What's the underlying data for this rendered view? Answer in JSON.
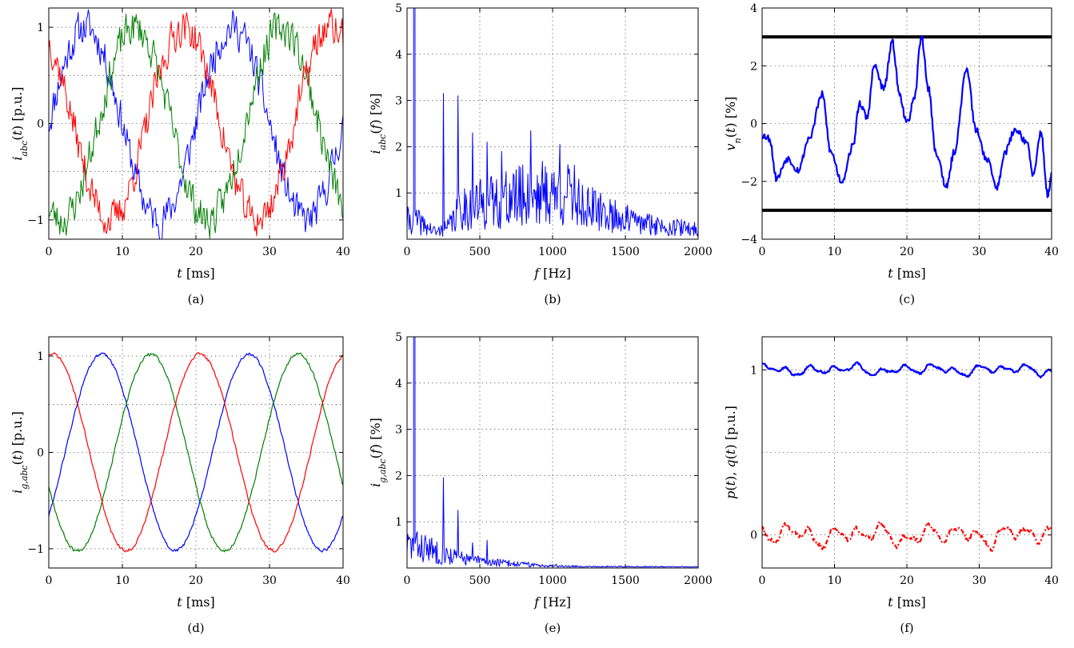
{
  "chart_data": [
    {
      "id": "a",
      "caption": "(a)",
      "type": "line",
      "xlabel": "t [ms]",
      "ylabel": "i_abc(t) [p.u.]",
      "xlim": [
        0,
        40
      ],
      "ylim": [
        -1.2,
        1.2
      ],
      "xticks": [
        0,
        10,
        20,
        30,
        40
      ],
      "yticks": [
        -1,
        0,
        1
      ],
      "ytick_labels": [
        "−1",
        "0",
        "1"
      ],
      "grid": true,
      "series": [
        {
          "color": "#0000ff",
          "kind": "sine",
          "amp": 1.0,
          "freq_hz": 50,
          "phase_deg": -90,
          "noise": 0.17,
          "seed": 11,
          "width": 1
        },
        {
          "color": "#007f00",
          "kind": "sine",
          "amp": 1.0,
          "freq_hz": 50,
          "phase_deg": 150,
          "noise": 0.17,
          "seed": 23,
          "width": 1
        },
        {
          "color": "#ff0000",
          "kind": "sine",
          "amp": 1.0,
          "freq_hz": 50,
          "phase_deg": 30,
          "noise": 0.17,
          "seed": 37,
          "width": 1
        }
      ]
    },
    {
      "id": "b",
      "caption": "(b)",
      "type": "line",
      "xlabel": "f [Hz]",
      "ylabel": "i_abc(f) [%]",
      "xlim": [
        0,
        2000
      ],
      "ylim": [
        0,
        5
      ],
      "xticks": [
        0,
        500,
        1000,
        1500,
        2000
      ],
      "yticks": [
        1,
        2,
        3,
        4,
        5
      ],
      "grid": true,
      "series": [
        {
          "color": "#0000ff",
          "kind": "spectrum",
          "seed": 41,
          "width": 1,
          "peaks": [
            [
              50,
              100
            ],
            [
              250,
              3.15
            ],
            [
              350,
              3.1
            ],
            [
              450,
              2.3
            ],
            [
              550,
              2.1
            ],
            [
              650,
              1.9
            ],
            [
              850,
              2.35
            ],
            [
              1050,
              2.05
            ],
            [
              1150,
              1.6
            ]
          ],
          "envelope": [
            [
              0,
              0.4
            ],
            [
              60,
              0.4
            ],
            [
              200,
              0.15
            ],
            [
              280,
              0.25
            ],
            [
              380,
              0.7
            ],
            [
              600,
              0.8
            ],
            [
              900,
              1.0
            ],
            [
              1100,
              0.95
            ],
            [
              1300,
              0.6
            ],
            [
              1600,
              0.35
            ],
            [
              2000,
              0.2
            ]
          ]
        }
      ]
    },
    {
      "id": "c",
      "caption": "(c)",
      "type": "line",
      "xlabel": "t [ms]",
      "ylabel": "v_n(t) [%]",
      "xlim": [
        0,
        40
      ],
      "ylim": [
        -4,
        4
      ],
      "xticks": [
        0,
        10,
        20,
        30,
        40
      ],
      "yticks": [
        -4,
        -2,
        0,
        2,
        4
      ],
      "ytick_labels": [
        "−4",
        "−2",
        "0",
        "2",
        "4"
      ],
      "grid": true,
      "hlines": [
        3,
        -3
      ],
      "series": [
        {
          "color": "#0000ff",
          "kind": "keypoints",
          "seed": 53,
          "width": 2.2,
          "noise": 0.25,
          "points": [
            [
              0,
              -0.4
            ],
            [
              1,
              -0.5
            ],
            [
              2,
              -1.9
            ],
            [
              3.5,
              -1.2
            ],
            [
              5,
              -1.6
            ],
            [
              6.5,
              -0.5
            ],
            [
              8.3,
              1.0
            ],
            [
              9.5,
              -1.0
            ],
            [
              11,
              -2.0
            ],
            [
              12.5,
              -0.8
            ],
            [
              13.5,
              0.7
            ],
            [
              14.5,
              0.2
            ],
            [
              15.5,
              2.0
            ],
            [
              16.8,
              1.2
            ],
            [
              18,
              2.8
            ],
            [
              19,
              1.0
            ],
            [
              20,
              0.0
            ],
            [
              21,
              0.8
            ],
            [
              22,
              3.0
            ],
            [
              23,
              1.2
            ],
            [
              24,
              -1.0
            ],
            [
              25.5,
              -2.2
            ],
            [
              26.5,
              -1.0
            ],
            [
              28.3,
              1.9
            ],
            [
              29.5,
              -0.2
            ],
            [
              31,
              -1.2
            ],
            [
              32.5,
              -2.2
            ],
            [
              33.5,
              -1.0
            ],
            [
              35,
              -0.2
            ],
            [
              36.5,
              -0.6
            ],
            [
              37.5,
              -1.8
            ],
            [
              38.5,
              -0.3
            ],
            [
              39.5,
              -2.5
            ],
            [
              40,
              -1.8
            ]
          ]
        }
      ]
    },
    {
      "id": "d",
      "caption": "(d)",
      "type": "line",
      "xlabel": "t [ms]",
      "ylabel": "i_g,abc(t) [p.u.]",
      "xlim": [
        0,
        40
      ],
      "ylim": [
        -1.2,
        1.2
      ],
      "xticks": [
        0,
        10,
        20,
        30,
        40
      ],
      "yticks": [
        -1,
        0,
        1
      ],
      "ytick_labels": [
        "−1",
        "0",
        "1"
      ],
      "grid": true,
      "series": [
        {
          "color": "#0000ff",
          "kind": "sine",
          "amp": 1.02,
          "freq_hz": 50,
          "phase_deg": -130,
          "noise": 0.015,
          "seed": 61,
          "width": 1.2
        },
        {
          "color": "#007f00",
          "kind": "sine",
          "amp": 1.02,
          "freq_hz": 50,
          "phase_deg": 110,
          "noise": 0.015,
          "seed": 67,
          "width": 1.2
        },
        {
          "color": "#ff0000",
          "kind": "sine",
          "amp": 1.02,
          "freq_hz": 50,
          "phase_deg": -10,
          "noise": 0.015,
          "seed": 71,
          "width": 1.2
        }
      ]
    },
    {
      "id": "e",
      "caption": "(e)",
      "type": "line",
      "xlabel": "f [Hz]",
      "ylabel": "i_g,abc(f) [%]",
      "xlim": [
        0,
        2000
      ],
      "ylim": [
        0,
        5
      ],
      "xticks": [
        0,
        500,
        1000,
        1500,
        2000
      ],
      "yticks": [
        1,
        2,
        3,
        4,
        5
      ],
      "grid": true,
      "series": [
        {
          "color": "#0000ff",
          "kind": "spectrum",
          "seed": 83,
          "width": 1,
          "peaks": [
            [
              50,
              100
            ],
            [
              250,
              1.95
            ],
            [
              350,
              1.25
            ],
            [
              450,
              0.55
            ],
            [
              550,
              0.6
            ]
          ],
          "envelope": [
            [
              0,
              0.5
            ],
            [
              100,
              0.45
            ],
            [
              250,
              0.3
            ],
            [
              400,
              0.2
            ],
            [
              600,
              0.12
            ],
            [
              900,
              0.06
            ],
            [
              1200,
              0.03
            ],
            [
              2000,
              0.02
            ]
          ]
        }
      ]
    },
    {
      "id": "f",
      "caption": "(f)",
      "type": "line",
      "xlabel": "t [ms]",
      "ylabel": "p(t), q(t) [p.u.]",
      "xlim": [
        0,
        40
      ],
      "ylim": [
        -0.2,
        1.2
      ],
      "xticks": [
        0,
        10,
        20,
        30,
        40
      ],
      "yticks": [
        0,
        1
      ],
      "grid": true,
      "ygrid_values": [
        0.5
      ],
      "series": [
        {
          "color": "#0000ff",
          "kind": "ripple",
          "base": 1.0,
          "amp": 0.035,
          "seed": 97,
          "width": 2.2
        },
        {
          "color": "#ff0000",
          "kind": "ripple",
          "base": 0.0,
          "amp": 0.07,
          "seed": 101,
          "width": 2.2,
          "dash": "6 3 2 3"
        }
      ]
    }
  ]
}
